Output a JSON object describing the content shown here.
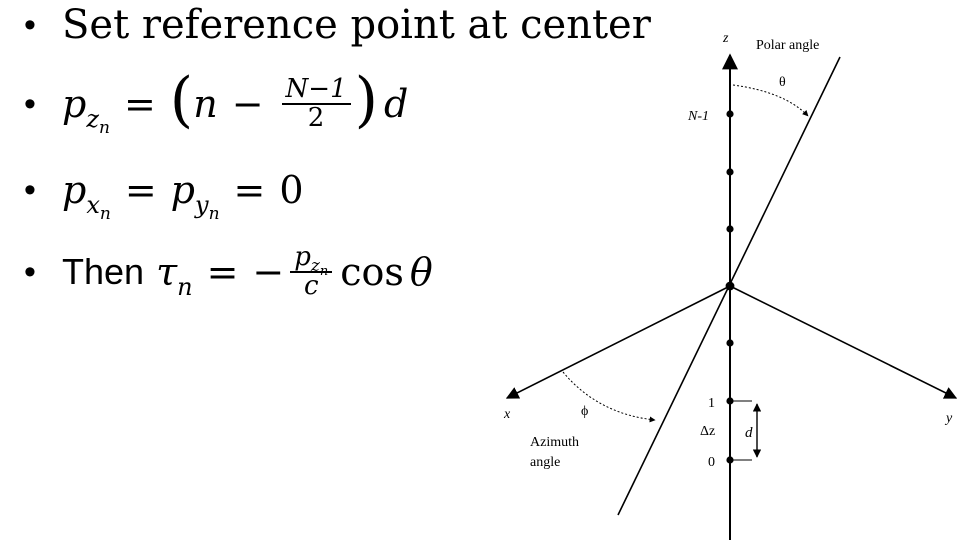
{
  "bullets": {
    "b1": {
      "text": "Set reference point at center"
    },
    "b2": {
      "p": "p",
      "z": "z",
      "n": "n",
      "eq": "=",
      "lparen": "(",
      "n_var": "n",
      "minus": "−",
      "frac_num": "N−1",
      "frac_den": "2",
      "rparen": ")",
      "d": "d"
    },
    "b3": {
      "p1": "p",
      "x": "x",
      "n1": "n",
      "eq1": "=",
      "p2": "p",
      "y": "y",
      "n2": "n",
      "eq2": "=",
      "zero": "0"
    },
    "b4": {
      "then": "Then",
      "tau": "τ",
      "n": "n",
      "eq": "=",
      "minus": "−",
      "frac_p": "p",
      "frac_z": "z",
      "frac_n": "n",
      "frac_den": "c",
      "cos": "cos",
      "theta": "θ"
    }
  },
  "diagram": {
    "z_label": "z",
    "polar_label": "Polar angle",
    "theta": "θ",
    "n1_label": "N-1",
    "x_label": "x",
    "y_label": "y",
    "phi": "ϕ",
    "azimuth1": "Azimuth",
    "azimuth2": "angle",
    "one": "1",
    "zero": "0",
    "dz": "Δz",
    "d": "d"
  }
}
